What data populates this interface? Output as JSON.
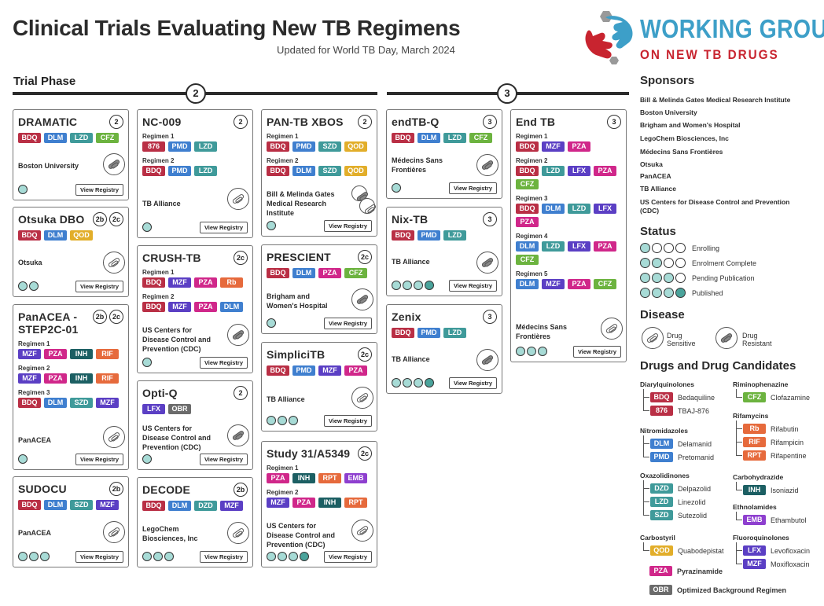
{
  "header": {
    "title": "Clinical Trials Evaluating New TB Regimens",
    "subtitle": "Updated for World TB Day, March 2024",
    "logo_line1": "WORKING GROUP",
    "logo_line2": "ON NEW TB DRUGS",
    "phase_label": "Trial Phase",
    "phase2_number": "2",
    "phase3_number": "3"
  },
  "colors": {
    "BDQ": "#b92f45",
    "876": "#b92f45",
    "DLM": "#3f7fcf",
    "PMD": "#3f7fcf",
    "LZD": "#3f9a9a",
    "DZD": "#3f9a9a",
    "SZD": "#3f9a9a",
    "CFZ": "#6cb33f",
    "QOD": "#e2ae2a",
    "MZF": "#5b3fc4",
    "LFX": "#5b3fc4",
    "PZA": "#d0278a",
    "INH": "#1c5f63",
    "RIF": "#e66a3c",
    "RPT": "#e66a3c",
    "Rb": "#e66a3c",
    "EMB": "#8e3fcf",
    "OBR": "#6b6b6b"
  },
  "common": {
    "view_registry": "View Registry"
  },
  "trials": {
    "dramatic": {
      "name": "DRAMATIC",
      "badges": [
        "2"
      ],
      "regimens": [
        {
          "label": "",
          "drugs": [
            "BDQ",
            "DLM",
            "LZD",
            "CFZ"
          ]
        }
      ],
      "sponsor": "Boston University",
      "disease": "resistant",
      "status_level": 1
    },
    "otsuka": {
      "name": "Otsuka DBO",
      "badges": [
        "2b",
        "2c"
      ],
      "regimens": [
        {
          "label": "",
          "drugs": [
            "BDQ",
            "DLM",
            "QOD"
          ]
        }
      ],
      "sponsor": "Otsuka",
      "disease": "sensitive",
      "status_level": 2
    },
    "panacea": {
      "name": "PanACEA -\nSTEP2C-01",
      "badges": [
        "2b",
        "2c"
      ],
      "regimens": [
        {
          "label": "Regimen 1",
          "drugs": [
            "MZF",
            "PZA",
            "INH",
            "RIF"
          ]
        },
        {
          "label": "Regimen 2",
          "drugs": [
            "MZF",
            "PZA",
            "INH",
            "RIF"
          ]
        },
        {
          "label": "Regimen 3",
          "drugs": [
            "BDQ",
            "DLM",
            "SZD",
            "MZF"
          ]
        }
      ],
      "sponsor": "PanACEA",
      "disease": "sensitive",
      "status_level": 1
    },
    "sudocu": {
      "name": "SUDOCU",
      "badges": [
        "2b"
      ],
      "regimens": [
        {
          "label": "",
          "drugs": [
            "BDQ",
            "DLM",
            "SZD",
            "MZF"
          ]
        }
      ],
      "sponsor": "PanACEA",
      "disease": "sensitive",
      "status_level": 3
    },
    "nc009": {
      "name": "NC-009",
      "badges": [
        "2"
      ],
      "regimens": [
        {
          "label": "Regimen 1",
          "drugs": [
            "876",
            "PMD",
            "LZD"
          ]
        },
        {
          "label": "Regimen 2",
          "drugs": [
            "BDQ",
            "PMD",
            "LZD"
          ]
        }
      ],
      "sponsor": "TB Alliance",
      "disease": "sensitive",
      "status_level": 1
    },
    "crush": {
      "name": "CRUSH-TB",
      "badges": [
        "2c"
      ],
      "regimens": [
        {
          "label": "Regimen 1",
          "drugs": [
            "BDQ",
            "MZF",
            "PZA",
            "Rb"
          ]
        },
        {
          "label": "Regimen 2",
          "drugs": [
            "BDQ",
            "MZF",
            "PZA",
            "DLM"
          ]
        }
      ],
      "sponsor": "US Centers for\nDisease Control and\nPrevention (CDC)",
      "disease": "resistant",
      "status_level": 1
    },
    "optiq": {
      "name": "Opti-Q",
      "badges": [
        "2"
      ],
      "regimens": [
        {
          "label": "",
          "drugs": [
            "LFX",
            "OBR"
          ]
        }
      ],
      "sponsor": "US Centers for\nDisease Control and\nPrevention (CDC)",
      "disease": "resistant",
      "status_level": 1
    },
    "decode": {
      "name": "DECODE",
      "badges": [
        "2b"
      ],
      "regimens": [
        {
          "label": "",
          "drugs": [
            "BDQ",
            "DLM",
            "DZD",
            "MZF"
          ]
        }
      ],
      "sponsor": "LegoChem\nBiosciences, Inc",
      "disease": "sensitive",
      "status_level": 3
    },
    "pantb": {
      "name": "PAN-TB XBOS",
      "badges": [
        "2"
      ],
      "regimens": [
        {
          "label": "Regimen 1",
          "drugs": [
            "BDQ",
            "PMD",
            "SZD",
            "QOD"
          ]
        },
        {
          "label": "Regimen 2",
          "drugs": [
            "BDQ",
            "DLM",
            "SZD",
            "QOD"
          ]
        }
      ],
      "sponsor": "Bill & Melinda Gates\nMedical Research\nInstitute",
      "disease": "both",
      "status_level": 1
    },
    "prescient": {
      "name": "PRESCIENT",
      "badges": [
        "2c"
      ],
      "regimens": [
        {
          "label": "",
          "drugs": [
            "BDQ",
            "DLM",
            "PZA",
            "CFZ"
          ]
        }
      ],
      "sponsor": "Brigham and\nWomen's Hospital",
      "disease": "resistant",
      "status_level": 1
    },
    "simplici": {
      "name": "SimpliciTB",
      "badges": [
        "2c"
      ],
      "regimens": [
        {
          "label": "",
          "drugs": [
            "BDQ",
            "PMD",
            "MZF",
            "PZA"
          ]
        }
      ],
      "sponsor": "TB Alliance",
      "disease": "sensitive",
      "status_level": 3
    },
    "study31": {
      "name": "Study 31/A5349",
      "badges": [
        "2c"
      ],
      "regimens": [
        {
          "label": "Regimen 1",
          "drugs": [
            "PZA",
            "INH",
            "RPT",
            "EMB"
          ]
        },
        {
          "label": "Regimen 2",
          "drugs": [
            "MZF",
            "PZA",
            "INH",
            "RPT"
          ]
        }
      ],
      "sponsor": "US Centers for\nDisease Control and\nPrevention (CDC)",
      "disease": "sensitive",
      "status_level": 4
    },
    "endtbq": {
      "name": "endTB-Q",
      "badges": [
        "3"
      ],
      "regimens": [
        {
          "label": "",
          "drugs": [
            "BDQ",
            "DLM",
            "LZD",
            "CFZ"
          ]
        }
      ],
      "sponsor": "Médecins Sans\nFrontières",
      "disease": "resistant",
      "status_level": 1
    },
    "nixtb": {
      "name": "Nix-TB",
      "badges": [
        "3"
      ],
      "regimens": [
        {
          "label": "",
          "drugs": [
            "BDQ",
            "PMD",
            "LZD"
          ]
        }
      ],
      "sponsor": "TB Alliance",
      "disease": "resistant",
      "status_level": 4
    },
    "zenix": {
      "name": "Zenix",
      "badges": [
        "3"
      ],
      "regimens": [
        {
          "label": "",
          "drugs": [
            "BDQ",
            "PMD",
            "LZD"
          ]
        }
      ],
      "sponsor": "TB Alliance",
      "disease": "resistant",
      "status_level": 4
    },
    "endtb": {
      "name": "End TB",
      "badges": [
        "3"
      ],
      "regimens": [
        {
          "label": "Regimen 1",
          "drugs": [
            "BDQ",
            "MZF",
            "PZA"
          ]
        },
        {
          "label": "Regimen 2",
          "drugs": [
            "BDQ",
            "LZD",
            "LFX",
            "PZA",
            "CFZ"
          ]
        },
        {
          "label": "Regimen 3",
          "drugs": [
            "BDQ",
            "DLM",
            "LZD",
            "LFX",
            "PZA"
          ]
        },
        {
          "label": "Regimen 4",
          "drugs": [
            "DLM",
            "LZD",
            "LFX",
            "PZA",
            "CFZ"
          ]
        },
        {
          "label": "Regimen 5",
          "drugs": [
            "DLM",
            "MZF",
            "PZA",
            "CFZ"
          ]
        }
      ],
      "sponsor": "Médecins Sans\nFrontières",
      "disease": "sensitive",
      "status_level": 3
    }
  },
  "sidebar": {
    "sponsors_heading": "Sponsors",
    "sponsors": [
      "Bill & Melinda Gates Medical Research Institute",
      "Boston University",
      "Brigham and Women's Hospital",
      "LegoChem Biosciences, Inc",
      "Médecins Sans Frontières",
      "Otsuka",
      "PanACEA",
      "TB Alliance",
      "US Centers for Disease Control and Prevention",
      "(CDC)"
    ],
    "status_heading": "Status",
    "statuses": [
      "Enrolling",
      "Enrolment Complete",
      "Pending Publication",
      "Published"
    ],
    "disease_heading": "Disease",
    "disease_sensitive": "Drug\nSensitive",
    "disease_resistant": "Drug\nResistant",
    "drugs_heading": "Drugs and Drug Candidates",
    "classes": {
      "diaryl": {
        "name": "Diarylquinolones",
        "drugs": [
          [
            "BDQ",
            "Bedaquiline"
          ],
          [
            "876",
            "TBAJ-876"
          ]
        ]
      },
      "nitro": {
        "name": "Nitromidazoles",
        "drugs": [
          [
            "DLM",
            "Delamanid"
          ],
          [
            "PMD",
            "Pretomanid"
          ]
        ]
      },
      "oxa": {
        "name": "Oxazolidinones",
        "drugs": [
          [
            "DZD",
            "Delpazolid"
          ],
          [
            "LZD",
            "Linezolid"
          ],
          [
            "SZD",
            "Sutezolid"
          ]
        ]
      },
      "carbo": {
        "name": "Carbostyril",
        "drugs": [
          [
            "QOD",
            "Quabodepistat"
          ]
        ]
      },
      "rimino": {
        "name": "Riminophenazine",
        "drugs": [
          [
            "CFZ",
            "Clofazamine"
          ]
        ]
      },
      "rifa": {
        "name": "Rifamycins",
        "drugs": [
          [
            "Rb",
            "Rifabutin"
          ],
          [
            "RIF",
            "Rifampicin"
          ],
          [
            "RPT",
            "Rifapentine"
          ]
        ]
      },
      "carbohyd": {
        "name": "Carbohydrazide",
        "drugs": [
          [
            "INH",
            "Isoniazid"
          ]
        ]
      },
      "ethnol": {
        "name": "Ethnolamides",
        "drugs": [
          [
            "EMB",
            "Ethambutol"
          ]
        ]
      },
      "fluoro": {
        "name": "Fluoroquinolones",
        "drugs": [
          [
            "LFX",
            "Levofloxacin"
          ],
          [
            "MZF",
            "Moxifloxacin"
          ]
        ]
      }
    },
    "pza_standalone": [
      "PZA",
      "Pyrazinamide"
    ],
    "obr_standalone": [
      "OBR",
      "Optimized Background Regimen"
    ]
  }
}
